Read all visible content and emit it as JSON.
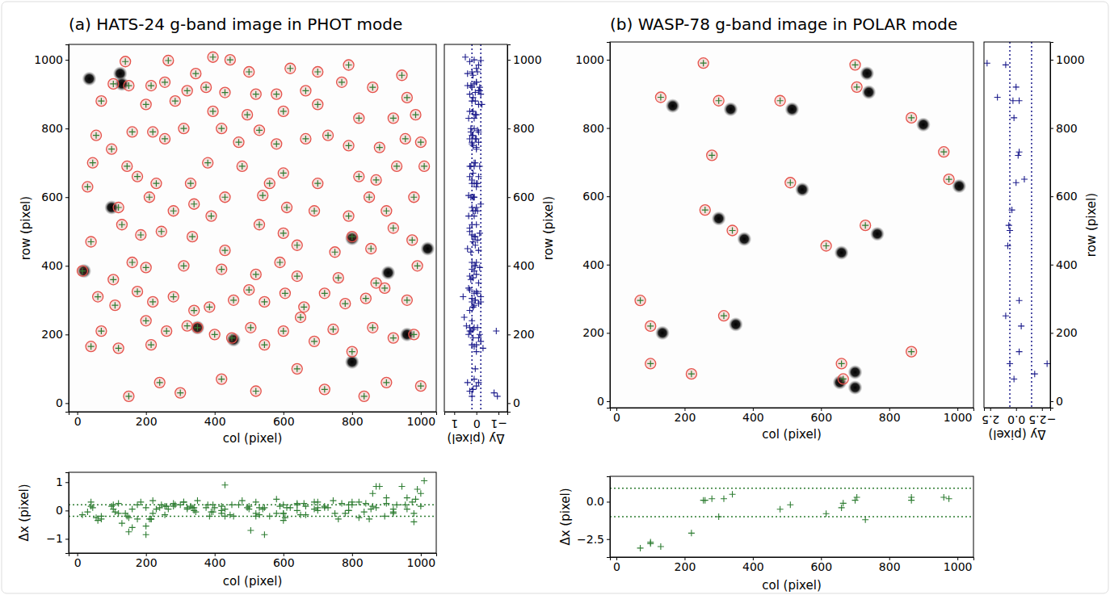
{
  "chart_data": [
    {
      "type": "scatter",
      "title": "(a) HATS-24 g-band image in PHOT mode",
      "image_axes": {
        "xlim": [
          -25,
          1045
        ],
        "ylim": [
          -25,
          1045
        ],
        "xticks": [
          0,
          200,
          400,
          600,
          800,
          1000
        ],
        "yticks": [
          0,
          200,
          400,
          600,
          800,
          1000
        ],
        "x_label": "col (pixel)",
        "y_label": "row (pixel)"
      },
      "dy_axes": {
        "xlim": [
          1.45,
          -1.4
        ],
        "ylim": [
          -25,
          1045
        ],
        "xticks": [
          1,
          0,
          {
            "value": -1,
            "label": "−1"
          }
        ],
        "yticks": [
          0,
          200,
          400,
          600,
          800,
          1000
        ],
        "x_label": "Δy (pixel)",
        "y_label": "row (pixel)",
        "limits": [
          -0.2,
          0.2
        ]
      },
      "dx_axes": {
        "xlim": [
          -25,
          1045
        ],
        "ylim": [
          -1.5,
          1.35
        ],
        "xticks": [
          0,
          200,
          400,
          600,
          800,
          1000
        ],
        "yticks": [
          {
            "value": -1,
            "label": "−1"
          },
          0,
          1
        ],
        "x_label": "col (pixel)",
        "y_label": "Δx (pixel)",
        "limits": [
          -0.2,
          0.2
        ]
      },
      "bright_sources": {
        "col": [
          125,
          100,
          800,
          350,
          455,
          800,
          905,
          960,
          20,
          1020,
          35,
          130
        ],
        "row": [
          960,
          570,
          480,
          220,
          185,
          120,
          380,
          200,
          385,
          450,
          945,
          930
        ]
      },
      "col": [
        140,
        265,
        395,
        445,
        620,
        700,
        790,
        945,
        345,
        500,
        105,
        215,
        320,
        430,
        520,
        665,
        770,
        860,
        960,
        580,
        70,
        200,
        285,
        395,
        495,
        600,
        700,
        820,
        920,
        985,
        55,
        100,
        220,
        310,
        420,
        530,
        665,
        790,
        880,
        1000,
        45,
        145,
        230,
        380,
        480,
        600,
        700,
        820,
        930,
        1010,
        30,
        120,
        210,
        340,
        430,
        540,
        690,
        790,
        900,
        980,
        40,
        130,
        245,
        335,
        430,
        530,
        640,
        750,
        855,
        975,
        15,
        105,
        200,
        310,
        420,
        520,
        640,
        760,
        870,
        990,
        60,
        175,
        280,
        385,
        500,
        605,
        720,
        840,
        895,
        960,
        40,
        120,
        215,
        320,
        450,
        545,
        650,
        745,
        860,
        980,
        70,
        200,
        350,
        400,
        505,
        600,
        690,
        800,
        920,
        260,
        150,
        240,
        300,
        420,
        520,
        640,
        720,
        835,
        900,
        1000,
        160,
        255,
        470,
        580,
        730,
        955,
        175,
        330,
        560,
        870,
        280,
        390,
        610,
        850,
        185,
        600,
        800,
        920,
        160,
        590,
        110,
        220,
        340,
        455,
        545,
        660,
        780,
        150,
        255,
        375
      ],
      "row": [
        995,
        998,
        1008,
        1000,
        975,
        965,
        985,
        955,
        960,
        965,
        930,
        925,
        910,
        905,
        900,
        910,
        935,
        920,
        890,
        900,
        880,
        870,
        880,
        850,
        840,
        850,
        870,
        830,
        830,
        840,
        780,
        740,
        790,
        800,
        800,
        795,
        770,
        750,
        745,
        760,
        700,
        690,
        640,
        700,
        690,
        670,
        640,
        660,
        690,
        690,
        630,
        570,
        600,
        580,
        600,
        605,
        560,
        545,
        560,
        600,
        470,
        520,
        500,
        485,
        445,
        520,
        460,
        440,
        450,
        475,
        385,
        360,
        395,
        400,
        390,
        375,
        370,
        365,
        350,
        400,
        310,
        325,
        310,
        280,
        330,
        320,
        320,
        305,
        335,
        300,
        165,
        160,
        170,
        225,
        190,
        170,
        250,
        215,
        220,
        200,
        210,
        240,
        220,
        200,
        220,
        210,
        180,
        150,
        190,
        210,
        20,
        60,
        30,
        70,
        35,
        100,
        40,
        20,
        60,
        50,
        790,
        770,
        760,
        755,
        780,
        770,
        660,
        640,
        640,
        650,
        560,
        545,
        570,
        600,
        490,
        495,
        485,
        510,
        410,
        410,
        285,
        295,
        270,
        300,
        295,
        280,
        290,
        925,
        935,
        920
      ],
      "dx": [
        -0.1,
        0.05,
        0.2,
        -0.15,
        0.1,
        0.3,
        0.0,
        0.85,
        -0.05,
        0.15,
        0.2,
        -0.3,
        0.1,
        0.05,
        -0.2,
        0.15,
        0.25,
        0.6,
        0.05,
        -0.1,
        -0.3,
        0.1,
        0.2,
        -0.05,
        0.1,
        -0.35,
        0.0,
        0.3,
        -0.1,
        0.4,
        -0.25,
        0.15,
        -0.1,
        0.3,
        0.0,
        0.1,
        -0.15,
        0.2,
        0.85,
        0.15,
        0.1,
        -0.2,
        0.05,
        0.2,
        0.35,
        -0.1,
        0.1,
        -0.25,
        0.2,
        1.05,
        -0.05,
        0.25,
        -0.3,
        0.1,
        -0.2,
        0.05,
        0.3,
        0.0,
        0.45,
        -0.1,
        0.15,
        -0.45,
        0.2,
        0.1,
        0.9,
        -0.15,
        0.25,
        -0.1,
        0.05,
        0.3,
        -0.15,
        0.05,
        -0.85,
        0.3,
        0.15,
        -0.1,
        0.2,
        -0.3,
        0.1,
        0.75,
        -0.35,
        0.2,
        0.15,
        -0.2,
        0.05,
        -0.25,
        0.1,
        0.25,
        -0.2,
        0.45,
        0.3,
        -0.1,
        -0.3,
        0.05,
        0.2,
        -0.85,
        -0.15,
        0.35,
        0.15,
        -0.4,
        -0.2,
        -0.55,
        0.35,
        0.1,
        -0.7,
        0.2,
        0.05,
        0.3,
        -0.05,
        0.15,
        -0.75,
        0.1,
        0.2,
        -0.1,
        0.3,
        0.0,
        0.15,
        -0.05,
        0.25,
        0.6,
        0.05,
        -0.15,
        0.2,
        0.4,
        0.1,
        0.2,
        -0.3,
        0.15,
        -0.2,
        0.85,
        0.25,
        -0.05,
        0.1,
        -0.3,
        0.3,
        -0.1,
        0.2,
        0.05,
        -0.6,
        0.15,
        -0.05,
        0.35,
        0.0,
        -0.2,
        0.1,
        0.25,
        -0.1,
        -0.25,
        0.15,
        0.1
      ],
      "dy": [
        0.3,
        -0.2,
        0.5,
        0.1,
        0.0,
        0.2,
        -0.1,
        0.15,
        0.4,
        -0.05,
        0.1,
        0.25,
        -0.15,
        0.05,
        0.3,
        -0.1,
        0.0,
        0.2,
        0.15,
        -0.2,
        0.05,
        -0.1,
        0.2,
        0.3,
        0.0,
        0.15,
        -0.25,
        0.1,
        0.35,
        0.05,
        0.2,
        0.0,
        -0.1,
        0.25,
        0.1,
        -0.05,
        0.3,
        0.15,
        0.0,
        0.2,
        0.1,
        -0.15,
        0.2,
        0.05,
        0.3,
        0.15,
        0.0,
        -0.1,
        0.25,
        0.1,
        0.0,
        0.2,
        0.1,
        -0.2,
        0.15,
        0.35,
        0.05,
        0.1,
        -0.05,
        0.25,
        0.15,
        0.0,
        0.3,
        0.1,
        -0.1,
        0.2,
        0.05,
        0.25,
        0.4,
        -0.05,
        0.1,
        0.25,
        -0.15,
        0.05,
        0.2,
        0.0,
        0.3,
        0.15,
        -0.1,
        0.1,
        0.6,
        0.0,
        -0.2,
        0.15,
        0.3,
        0.1,
        -0.05,
        0.2,
        0.35,
        0.05,
        0.1,
        -0.3,
        0.2,
        0.45,
        -0.1,
        0.0,
        0.55,
        0.15,
        0.3,
        -0.15,
        -0.9,
        0.2,
        -0.05,
        0.35,
        0.1,
        0.25,
        -0.2,
        0.0,
        0.15,
        0.3,
        0.2,
        -0.1,
        -0.8,
        0.1,
        0.3,
        0.05,
        0.15,
        -0.95,
        0.4,
        0.0,
        0.25,
        0.05,
        -0.1,
        0.2,
        0.15,
        0.0,
        0.3,
        -0.05,
        0.1,
        0.2,
        0.15,
        0.35,
        0.0,
        0.1,
        0.2,
        -0.15,
        0.05,
        0.3,
        0.0,
        0.2,
        0.1,
        -0.2,
        0.3,
        0.05,
        0.2,
        0.15,
        -0.1,
        0.4,
        0.0,
        -0.15
      ]
    },
    {
      "type": "scatter",
      "title": "(b) WASP-78 g-band image in POLAR mode",
      "image_axes": {
        "xlim": [
          -19,
          1047
        ],
        "ylim": [
          -19,
          1052
        ],
        "xticks": [
          0,
          200,
          400,
          600,
          800,
          1000
        ],
        "yticks": [
          0,
          200,
          400,
          600,
          800,
          1000
        ],
        "x_label": "col (pixel)"
      },
      "dy_axes": {
        "xlim": [
          3.1,
          -3.3
        ],
        "ylim": [
          -19,
          1052
        ],
        "xticks": [
          2.5,
          {
            "value": 0,
            "label": "0.0"
          },
          {
            "value": -2.5,
            "label": "−2.5"
          }
        ],
        "yticks": [
          0,
          200,
          400,
          600,
          800,
          1000
        ],
        "x_label": "Δy (pixel)",
        "y_label": "row (pixel)",
        "limits": [
          -1.5,
          0.6
        ]
      },
      "dx_axes": {
        "xlim": [
          -19,
          1047
        ],
        "ylim": [
          -3.7,
          1.7
        ],
        "xticks": [
          0,
          200,
          400,
          600,
          800,
          1000
        ],
        "yticks": [
          {
            "value": -2.5,
            "label": "−2.5"
          },
          {
            "value": 0,
            "label": "0.0"
          }
        ],
        "x_label": "col (pixel)",
        "y_label": "Δx (pixel)",
        "limits": [
          -1.0,
          0.9
        ]
      },
      "bright_sources": {
        "col": [
          165,
          335,
          515,
          765,
          350,
          135,
          300,
          375,
          545,
          660,
          735,
          700,
          700,
          655,
          900,
          1005,
          740
        ],
        "row": [
          865,
          855,
          855,
          490,
          225,
          200,
          535,
          475,
          620,
          435,
          960,
          85,
          40,
          55,
          810,
          630,
          905
        ]
      },
      "col": [
        255,
        700,
        705,
        130,
        300,
        480,
        865,
        280,
        960,
        975,
        510,
        260,
        730,
        340,
        615,
        70,
        100,
        315,
        100,
        660,
        220,
        665,
        865
      ],
      "row": [
        990,
        985,
        920,
        890,
        880,
        880,
        830,
        720,
        730,
        650,
        640,
        560,
        515,
        500,
        455,
        295,
        220,
        250,
        110,
        110,
        80,
        65,
        145
      ],
      "dx": [
        0.1,
        0.1,
        0.3,
        -3.0,
        -1.0,
        -0.5,
        0.3,
        0.2,
        0.3,
        0.2,
        -0.2,
        0.1,
        -1.2,
        0.5,
        -0.8,
        -3.1,
        -2.8,
        0.2,
        -2.7,
        -0.4,
        -2.1,
        -0.1,
        0.1
      ],
      "dy": [
        2.8,
        1.0,
        0.0,
        1.8,
        0.3,
        -0.3,
        0.2,
        -0.2,
        -0.3,
        -0.8,
        0.0,
        0.4,
        0.7,
        0.6,
        0.8,
        -0.3,
        -0.5,
        1.0,
        0.6,
        -3.0,
        -1.8,
        0.2,
        -0.3
      ]
    }
  ]
}
